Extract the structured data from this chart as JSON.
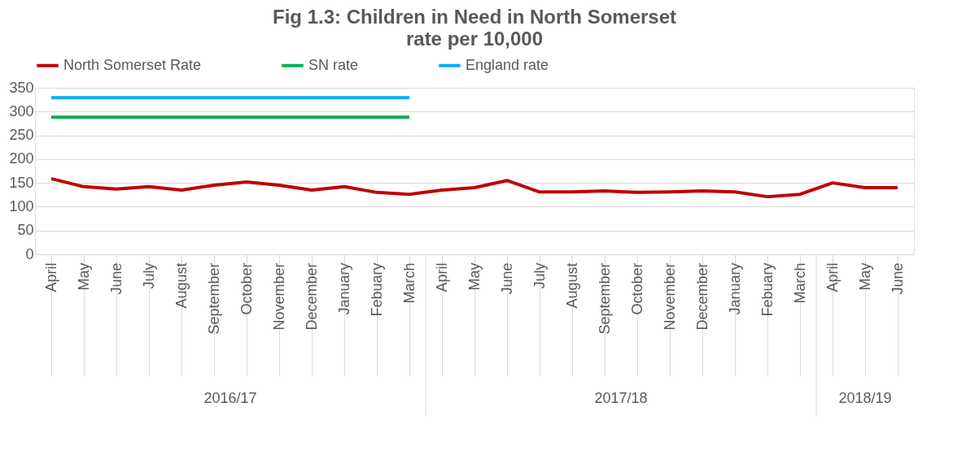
{
  "chart_data": {
    "type": "line",
    "title": "Fig 1.3: Children in Need in North Somerset",
    "subtitle": "rate per 10,000",
    "categories": [
      "April",
      "May",
      "June",
      "July",
      "August",
      "September",
      "October",
      "November",
      "December",
      "January",
      "Febuary",
      "March",
      "April",
      "May",
      "June",
      "July",
      "August",
      "September",
      "October",
      "November",
      "December",
      "January",
      "Febuary",
      "March",
      "April",
      "May",
      "June"
    ],
    "series": [
      {
        "name": "North Somerset Rate",
        "color": "#c00000",
        "values": [
          159,
          142,
          137,
          142,
          135,
          145,
          152,
          145,
          135,
          142,
          130,
          126,
          135,
          140,
          155,
          131,
          131,
          133,
          130,
          131,
          133,
          131,
          121,
          126,
          150,
          140,
          140
        ]
      },
      {
        "name": "SN rate",
        "color": "#00b050",
        "values": [
          288,
          288,
          288,
          288,
          288,
          288,
          288,
          288,
          288,
          288,
          288,
          288,
          null,
          null,
          null,
          null,
          null,
          null,
          null,
          null,
          null,
          null,
          null,
          null,
          null,
          null,
          null
        ]
      },
      {
        "name": "England rate",
        "color": "#00b0f0",
        "values": [
          329,
          329,
          329,
          329,
          329,
          329,
          329,
          329,
          329,
          329,
          329,
          329,
          null,
          null,
          null,
          null,
          null,
          null,
          null,
          null,
          null,
          null,
          null,
          null,
          null,
          null,
          null
        ]
      }
    ],
    "annotations": [
      "2016/17",
      "2017/18",
      "2018/19"
    ],
    "ylim": [
      0,
      350
    ],
    "yticks": [
      0,
      50,
      100,
      150,
      200,
      250,
      300,
      350
    ],
    "grid": "y",
    "legend": "top",
    "marker": "none",
    "line_style": "solid"
  }
}
